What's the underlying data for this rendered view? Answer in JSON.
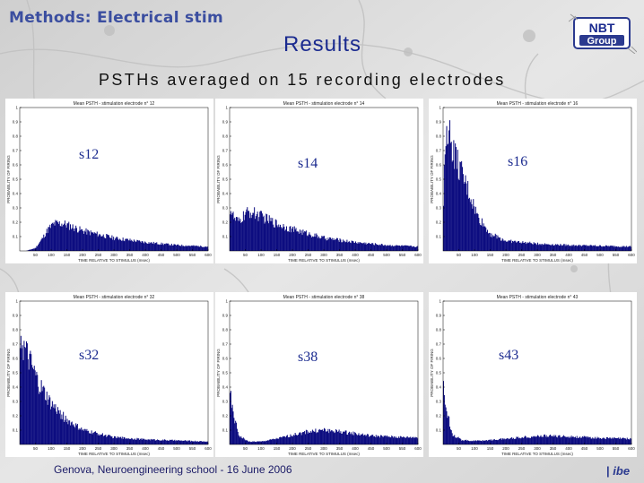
{
  "slide": {
    "header_title": "Methods: Electrical stim",
    "results_title": "Results",
    "subtitle": "PSTHs averaged on 15 recording electrodes",
    "footer": "Genova, Neuroengineering school - 16 June 2006",
    "logo_top": "NBT",
    "logo_bottom": "Group",
    "ibe_logo": "ibe"
  },
  "colors": {
    "bar": "#0d0d80",
    "title_blue": "#1a2a8f",
    "header_blue": "#3b4ea0"
  },
  "chart_data": [
    {
      "type": "bar",
      "label": "s12",
      "title": "Mean PSTH - stimulation electrode n° 12",
      "xlabel": "TIME RELATIVE TO STIMULUS (msec)",
      "ylabel": "PROBABILITY OF FIRING",
      "xlim": [
        0,
        600
      ],
      "ylim": [
        0,
        1
      ],
      "xticks": [
        50,
        100,
        150,
        200,
        250,
        300,
        350,
        400,
        450,
        500,
        550,
        600
      ],
      "yticks": [
        0.1,
        0.2,
        0.3,
        0.4,
        0.5,
        0.6,
        0.7,
        0.8,
        0.9,
        1
      ],
      "profile": [
        [
          0,
          0
        ],
        [
          20,
          0
        ],
        [
          50,
          0.02
        ],
        [
          70,
          0.08
        ],
        [
          90,
          0.15
        ],
        [
          110,
          0.19
        ],
        [
          140,
          0.19
        ],
        [
          200,
          0.14
        ],
        [
          300,
          0.09
        ],
        [
          400,
          0.06
        ],
        [
          500,
          0.04
        ],
        [
          600,
          0.03
        ]
      ]
    },
    {
      "type": "bar",
      "label": "s14",
      "title": "Mean PSTH - stimulation electrode n° 14",
      "xlabel": "TIME RELATIVE TO STIMULUS (msec)",
      "ylabel": "PROBABILITY OF FIRING",
      "xlim": [
        0,
        600
      ],
      "ylim": [
        0,
        1
      ],
      "xticks": [
        50,
        100,
        150,
        200,
        250,
        300,
        350,
        400,
        450,
        500,
        550,
        600
      ],
      "yticks": [
        0.1,
        0.2,
        0.3,
        0.4,
        0.5,
        0.6,
        0.7,
        0.8,
        0.9,
        1
      ],
      "profile": [
        [
          0,
          0.3
        ],
        [
          5,
          0.28
        ],
        [
          15,
          0.22
        ],
        [
          30,
          0.2
        ],
        [
          50,
          0.26
        ],
        [
          70,
          0.27
        ],
        [
          100,
          0.24
        ],
        [
          150,
          0.19
        ],
        [
          200,
          0.15
        ],
        [
          300,
          0.09
        ],
        [
          400,
          0.06
        ],
        [
          500,
          0.04
        ],
        [
          600,
          0.03
        ]
      ]
    },
    {
      "type": "bar",
      "label": "s16",
      "title": "Mean PSTH - stimulation electrode n° 16",
      "xlabel": "TIME RELATIVE TO STIMULUS (msec)",
      "ylabel": "PROBABILITY OF FIRING",
      "xlim": [
        0,
        600
      ],
      "ylim": [
        0,
        1
      ],
      "xticks": [
        50,
        100,
        150,
        200,
        250,
        300,
        350,
        400,
        450,
        500,
        550,
        600
      ],
      "yticks": [
        0.1,
        0.2,
        0.3,
        0.4,
        0.5,
        0.6,
        0.7,
        0.8,
        0.9,
        1
      ],
      "profile": [
        [
          0,
          0.2
        ],
        [
          8,
          0.88
        ],
        [
          15,
          0.86
        ],
        [
          30,
          0.72
        ],
        [
          50,
          0.58
        ],
        [
          80,
          0.42
        ],
        [
          110,
          0.24
        ],
        [
          150,
          0.12
        ],
        [
          200,
          0.07
        ],
        [
          300,
          0.05
        ],
        [
          400,
          0.04
        ],
        [
          600,
          0.03
        ]
      ]
    },
    {
      "type": "bar",
      "label": "s32",
      "title": "Mean PSTH - stimulation electrode n° 32",
      "xlabel": "TIME RELATIVE TO STIMULUS (msec)",
      "ylabel": "PROBABILITY OF FIRING",
      "xlim": [
        0,
        600
      ],
      "ylim": [
        0,
        1
      ],
      "xticks": [
        50,
        100,
        150,
        200,
        250,
        300,
        350,
        400,
        450,
        500,
        550,
        600
      ],
      "yticks": [
        0.1,
        0.2,
        0.3,
        0.4,
        0.5,
        0.6,
        0.7,
        0.8,
        0.9,
        1
      ],
      "profile": [
        [
          0,
          0.82
        ],
        [
          10,
          0.68
        ],
        [
          30,
          0.58
        ],
        [
          60,
          0.42
        ],
        [
          100,
          0.28
        ],
        [
          150,
          0.17
        ],
        [
          200,
          0.1
        ],
        [
          300,
          0.05
        ],
        [
          400,
          0.035
        ],
        [
          600,
          0.02
        ]
      ]
    },
    {
      "type": "bar",
      "label": "s38",
      "title": "Mean PSTH - stimulation electrode n° 38",
      "xlabel": "TIME RELATIVE TO STIMULUS (msec)",
      "ylabel": "PROBABILITY OF FIRING",
      "xlim": [
        0,
        600
      ],
      "ylim": [
        0,
        1
      ],
      "xticks": [
        50,
        100,
        150,
        200,
        250,
        300,
        350,
        400,
        450,
        500,
        550,
        600
      ],
      "yticks": [
        0.1,
        0.2,
        0.3,
        0.4,
        0.5,
        0.6,
        0.7,
        0.8,
        0.9,
        1
      ],
      "profile": [
        [
          0,
          0.38
        ],
        [
          10,
          0.22
        ],
        [
          30,
          0.06
        ],
        [
          60,
          0.02
        ],
        [
          100,
          0.02
        ],
        [
          150,
          0.04
        ],
        [
          250,
          0.09
        ],
        [
          300,
          0.1
        ],
        [
          350,
          0.09
        ],
        [
          450,
          0.06
        ],
        [
          550,
          0.05
        ],
        [
          600,
          0.05
        ]
      ]
    },
    {
      "type": "bar",
      "label": "s43",
      "title": "Mean PSTH - stimulation electrode n° 43",
      "xlabel": "TIME RELATIVE TO STIMULUS (msec)",
      "ylabel": "PROBABILITY OF FIRING",
      "xlim": [
        0,
        600
      ],
      "ylim": [
        0,
        1
      ],
      "xticks": [
        50,
        100,
        150,
        200,
        250,
        300,
        350,
        400,
        450,
        500,
        550,
        600
      ],
      "yticks": [
        0.1,
        0.2,
        0.3,
        0.4,
        0.5,
        0.6,
        0.7,
        0.8,
        0.9,
        1
      ],
      "profile": [
        [
          0,
          0.4
        ],
        [
          10,
          0.25
        ],
        [
          30,
          0.07
        ],
        [
          60,
          0.03
        ],
        [
          100,
          0.025
        ],
        [
          150,
          0.03
        ],
        [
          250,
          0.05
        ],
        [
          320,
          0.06
        ],
        [
          400,
          0.055
        ],
        [
          500,
          0.045
        ],
        [
          600,
          0.04
        ]
      ]
    }
  ]
}
